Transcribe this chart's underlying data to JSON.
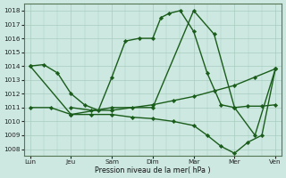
{
  "background_color": "#cce8e0",
  "grid_color": "#a8ccbf",
  "line_color": "#1a5c1a",
  "xlabel": "Pression niveau de la mer( hPa )",
  "ylim": [
    1007.5,
    1018.5
  ],
  "yticks": [
    1008,
    1009,
    1010,
    1011,
    1012,
    1013,
    1014,
    1015,
    1016,
    1017,
    1018
  ],
  "xtick_labels": [
    "Lun",
    "Jeu",
    "Sam",
    "Dim",
    "Mar",
    "Mer",
    "Ven"
  ],
  "xlim": [
    -0.15,
    6.15
  ],
  "line1_x": [
    0,
    0.33,
    0.67,
    1.0,
    1.33,
    1.67,
    2.0,
    2.33,
    2.67,
    3.0,
    3.2,
    3.4,
    3.67,
    4.0,
    4.33,
    4.67,
    5.0,
    5.33,
    5.67,
    6.0
  ],
  "line1_y": [
    1014.0,
    1014.1,
    1013.5,
    1012.0,
    1011.2,
    1010.8,
    1013.2,
    1015.8,
    1016.0,
    1016.0,
    1017.5,
    1017.8,
    1018.0,
    1016.5,
    1013.5,
    1011.2,
    1011.0,
    1011.1,
    1011.1,
    1011.2
  ],
  "line2_x": [
    0,
    1.0,
    2.0,
    3.0,
    4.0,
    4.5,
    5.0,
    5.5,
    6.0
  ],
  "line2_y": [
    1014.0,
    1010.5,
    1011.0,
    1011.0,
    1018.0,
    1016.3,
    1011.0,
    1009.0,
    1013.8
  ],
  "line3_x": [
    0,
    0.5,
    1.0,
    1.5,
    2.0,
    2.5,
    3.0,
    3.5,
    4.0,
    4.33,
    4.67,
    5.0,
    5.33,
    5.67,
    6.0
  ],
  "line3_y": [
    1011.0,
    1011.0,
    1010.5,
    1010.5,
    1010.5,
    1010.3,
    1010.2,
    1010.0,
    1009.7,
    1009.0,
    1008.2,
    1007.7,
    1008.5,
    1009.0,
    1013.8
  ],
  "line4_x": [
    1.0,
    1.5,
    2.0,
    2.5,
    3.0,
    3.5,
    4.0,
    4.5,
    5.0,
    5.5,
    6.0
  ],
  "line4_y": [
    1011.0,
    1010.8,
    1010.8,
    1011.0,
    1011.2,
    1011.5,
    1011.8,
    1012.2,
    1012.6,
    1013.2,
    1013.8
  ]
}
